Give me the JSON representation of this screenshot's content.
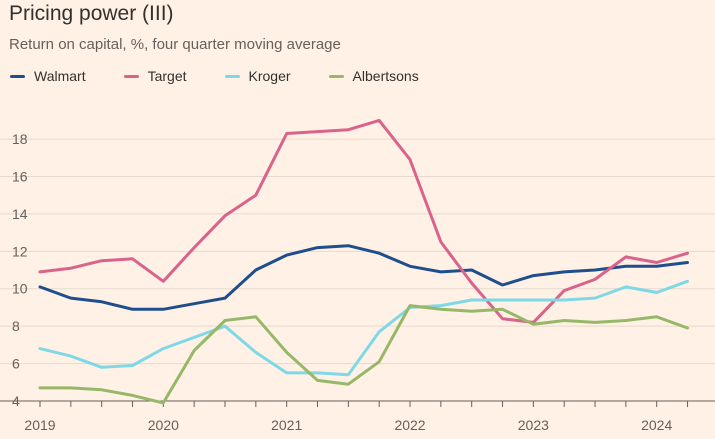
{
  "chart_data": {
    "type": "line",
    "title": "Pricing power (III)",
    "subtitle": "Return on capital, %, four quarter moving average",
    "xlabel": "",
    "ylabel": "",
    "ylim": [
      4,
      19.5
    ],
    "xlim": [
      2019.0,
      2024.27
    ],
    "yticks": [
      4,
      6,
      8,
      10,
      12,
      14,
      16,
      18
    ],
    "xticks": [
      2019,
      2020,
      2021,
      2022,
      2023,
      2024
    ],
    "grid": true,
    "legend_position": "top-left",
    "x": [
      2019.0,
      2019.25,
      2019.5,
      2019.75,
      2020.0,
      2020.25,
      2020.5,
      2020.75,
      2021.0,
      2021.25,
      2021.5,
      2021.75,
      2022.0,
      2022.25,
      2022.5,
      2022.75,
      2023.0,
      2023.25,
      2023.5,
      2023.75,
      2024.0,
      2024.25
    ],
    "series": [
      {
        "name": "Walmart",
        "color": "#1F4E8C",
        "values": [
          10.1,
          9.5,
          9.3,
          8.9,
          8.9,
          9.2,
          9.5,
          11.0,
          11.8,
          12.2,
          12.3,
          11.9,
          11.2,
          10.9,
          11.0,
          10.2,
          10.7,
          10.9,
          11.0,
          11.2,
          11.2,
          11.4
        ]
      },
      {
        "name": "Target",
        "color": "#D9638A",
        "values": [
          10.9,
          11.1,
          11.5,
          11.6,
          10.4,
          12.2,
          13.9,
          15.0,
          18.3,
          18.4,
          18.5,
          19.0,
          16.9,
          12.5,
          10.3,
          8.4,
          8.2,
          9.9,
          10.5,
          11.7,
          11.4,
          11.9
        ]
      },
      {
        "name": "Kroger",
        "color": "#7FD8E6",
        "values": [
          6.8,
          6.4,
          5.8,
          5.9,
          6.8,
          7.4,
          8.0,
          6.6,
          5.5,
          5.5,
          5.4,
          7.7,
          9.0,
          9.1,
          9.4,
          9.4,
          9.4,
          9.4,
          9.5,
          10.1,
          9.8,
          10.4
        ]
      },
      {
        "name": "Albertsons",
        "color": "#96B868",
        "values": [
          4.7,
          4.7,
          4.6,
          4.3,
          3.9,
          6.7,
          8.3,
          8.5,
          6.6,
          5.1,
          4.9,
          6.1,
          9.1,
          8.9,
          8.8,
          8.9,
          8.1,
          8.3,
          8.2,
          8.3,
          8.5,
          7.9
        ]
      }
    ],
    "colors": {
      "background": "#FFF1E5",
      "gridline": "#E6D9CE",
      "axis": "#66605C"
    }
  }
}
